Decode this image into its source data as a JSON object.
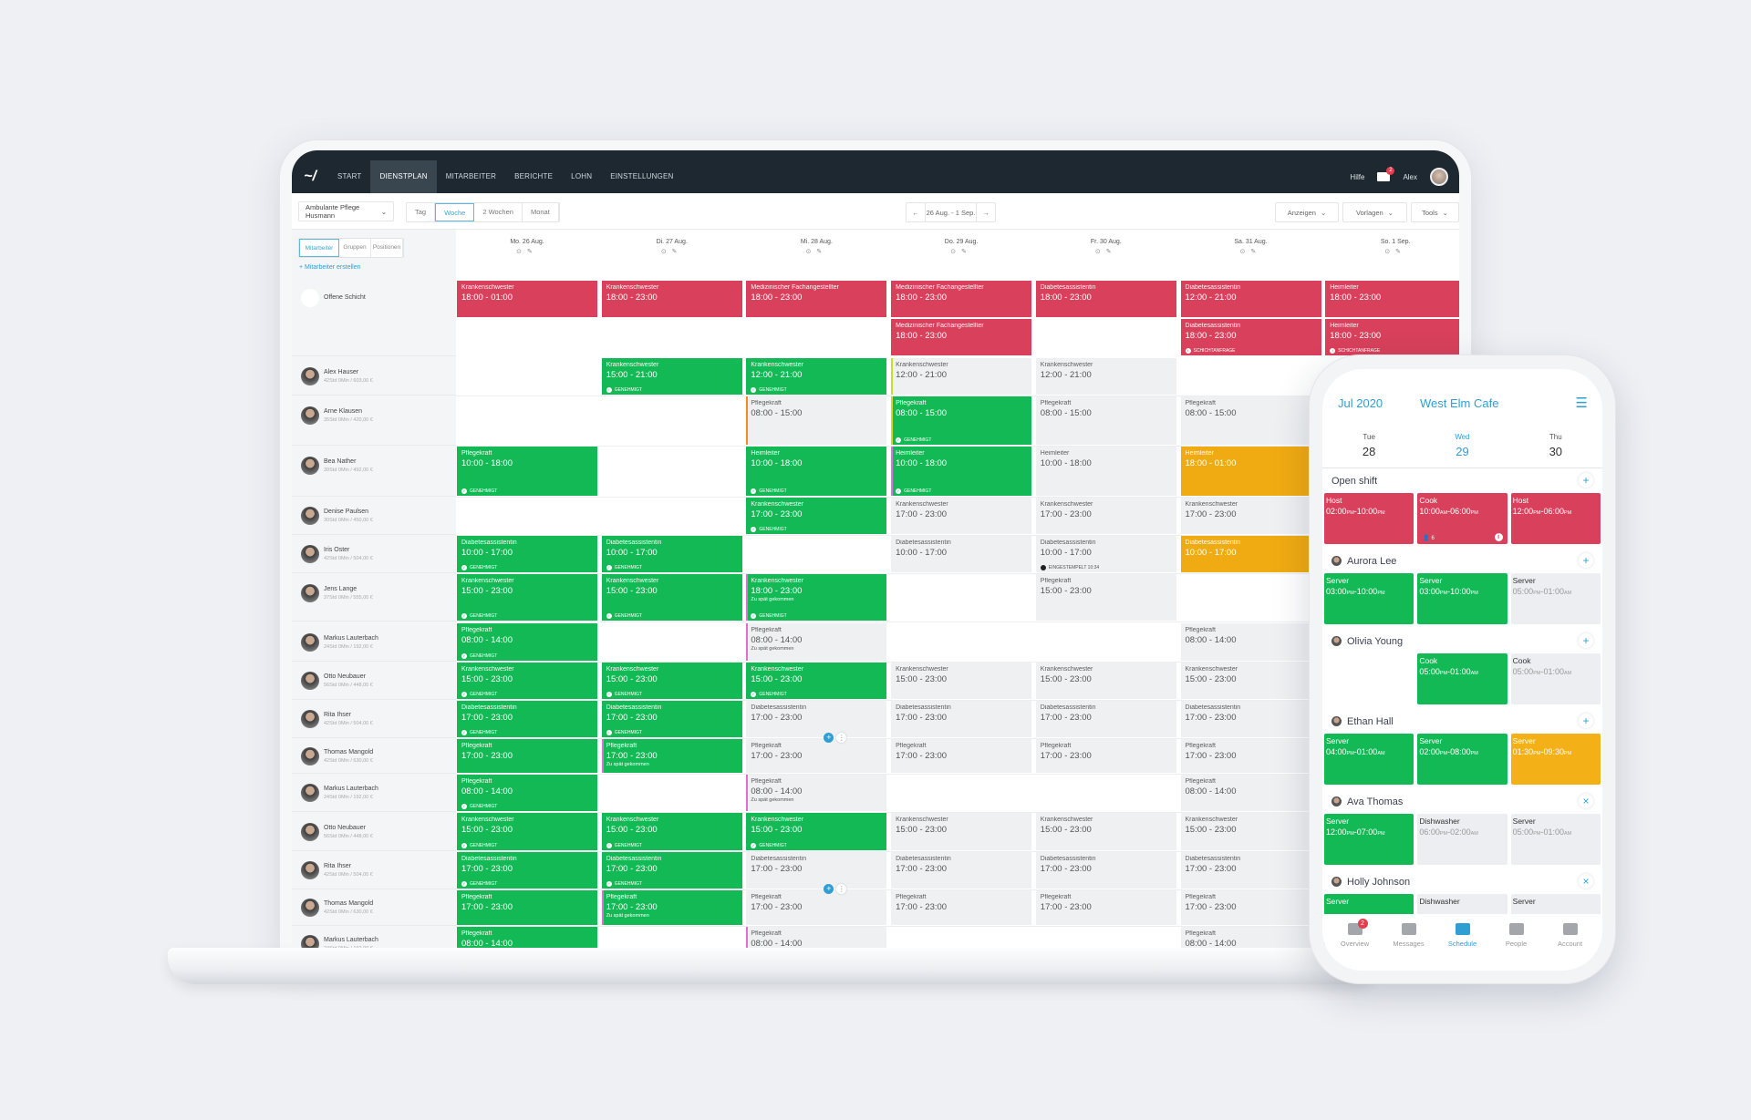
{
  "nav": {
    "items": [
      "START",
      "DIENSTPLAN",
      "MITARBEITER",
      "BERICHTE",
      "LOHN",
      "EINSTELLUNGEN"
    ],
    "active": 1,
    "help": "Hilfe",
    "mail_badge": "2",
    "user": "Alex"
  },
  "toolbar": {
    "location": "Ambulante Pflege Husmann",
    "views": [
      "Tag",
      "Woche",
      "2 Wochen",
      "Monat"
    ],
    "active_view": 1,
    "date_range": "26 Aug. - 1 Sep.",
    "menus": [
      "Anzeigen",
      "Vorlagen",
      "Tools"
    ]
  },
  "sidebar": {
    "tabs": [
      "Mitarbeiter",
      "Gruppen",
      "Positionen"
    ],
    "create": "+ Mitarbeiter erstellen",
    "open_label": "Offene Schicht"
  },
  "days": [
    "Mo. 26 Aug.",
    "Di. 27 Aug.",
    "Mi. 28 Aug.",
    "Do. 29 Aug.",
    "Fr. 30 Aug.",
    "Sa. 31 Aug.",
    "So. 1 Sep."
  ],
  "colors": {
    "green": "#13b955",
    "red": "#d8405b",
    "gray": "#eef0f2",
    "yellow": "#f0ab12",
    "accent": "#2f9fd3"
  },
  "open_shifts": [
    [
      {
        "role": "Krankenschwester",
        "time": "18:00 - 01:00",
        "status": "red"
      },
      {
        "role": "Krankenschwester",
        "time": "18:00 - 23:00",
        "status": "red"
      },
      {
        "role": "Medizinischer Fachangestellter",
        "time": "18:00 - 23:00",
        "status": "red"
      },
      {
        "role": "Medizinischer Fachangestellter",
        "time": "18:00 - 23:00",
        "status": "red"
      },
      {
        "role": "Diabetesassistentin",
        "time": "18:00 - 23:00",
        "status": "red"
      },
      {
        "role": "Diabetesassistentin",
        "time": "12:00 - 21:00",
        "status": "red"
      },
      {
        "role": "Heimleiter",
        "time": "18:00 - 23:00",
        "status": "red"
      }
    ],
    [
      null,
      null,
      null,
      {
        "role": "Medizinischer Fachangestellter",
        "time": "18:00 - 23:00",
        "status": "red"
      },
      null,
      {
        "role": "Diabetesassistentin",
        "time": "18:00 - 23:00",
        "status": "red",
        "badge": "SCHICHTANFRAGE",
        "badge_icon": "info"
      },
      {
        "role": "Heimleiter",
        "time": "18:00 - 23:00",
        "status": "red",
        "badge": "SCHICHTANFRAGE",
        "badge_icon": "info"
      }
    ]
  ],
  "employees": [
    {
      "name": "Alex Hauser",
      "stats": "42Std 0Min / 603,00 €",
      "cells": [
        null,
        {
          "role": "Krankenschwester",
          "time": "15:00 - 21:00",
          "status": "green",
          "badge": "GENEHMIGT"
        },
        {
          "role": "Krankenschwester",
          "time": "12:00 - 21:00",
          "status": "green",
          "badge": "GENEHMIGT"
        },
        {
          "role": "Krankenschwester",
          "time": "12:00 - 21:00",
          "status": "gray",
          "stripe": "#c9dc2b"
        },
        {
          "role": "Krankenschwester",
          "time": "12:00 - 21:00",
          "status": "gray"
        },
        null,
        null
      ]
    },
    {
      "name": "Arne Klausen",
      "stats": "35Std 0Min / 420,00 €",
      "cells": [
        null,
        null,
        {
          "role": "Pflegekraft",
          "time": "08:00 - 15:00",
          "status": "gray",
          "stripe": "#f08a24"
        },
        {
          "role": "Pflegekraft",
          "time": "08:00 - 15:00",
          "status": "green",
          "badge": "GENEHMIGT",
          "stripe": "#c9dc2b"
        },
        {
          "role": "Pflegekraft",
          "time": "08:00 - 15:00",
          "status": "gray"
        },
        {
          "role": "Pflegekraft",
          "time": "08:00 - 15:00",
          "status": "gray"
        },
        null
      ]
    },
    {
      "name": "Bea Nather",
      "stats": "39Std 0Min / 492,00 €",
      "cells": [
        {
          "role": "Pflegekraft",
          "time": "10:00 - 18:00",
          "status": "green",
          "badge": "GENEHMIGT"
        },
        null,
        {
          "role": "Heimleiter",
          "time": "10:00 - 18:00",
          "status": "green",
          "badge": "GENEHMIGT"
        },
        {
          "role": "Heimleiter",
          "time": "10:00 - 18:00",
          "status": "green",
          "badge": "GENEHMIGT",
          "stripe": "#d07ae0"
        },
        {
          "role": "Heimleiter",
          "time": "10:00 - 18:00",
          "status": "gray"
        },
        {
          "role": "Heimleiter",
          "time": "18:00 - 01:00",
          "status": "yellow"
        },
        null
      ]
    },
    {
      "name": "Denise Paulsen",
      "stats": "30Std 0Min / 450,00 €",
      "cells": [
        null,
        null,
        {
          "role": "Krankenschwester",
          "time": "17:00 - 23:00",
          "status": "green",
          "badge": "GENEHMIGT"
        },
        {
          "role": "Krankenschwester",
          "time": "17:00 - 23:00",
          "status": "gray"
        },
        {
          "role": "Krankenschwester",
          "time": "17:00 - 23:00",
          "status": "gray"
        },
        {
          "role": "Krankenschwester",
          "time": "17:00 - 23:00",
          "status": "gray"
        },
        null
      ]
    },
    {
      "name": "Iris Oster",
      "stats": "42Std 0Min / 504,00 €",
      "cells": [
        {
          "role": "Diabetesassistentin",
          "time": "10:00 - 17:00",
          "status": "green",
          "badge": "GENEHMIGT"
        },
        {
          "role": "Diabetesassistentin",
          "time": "10:00 - 17:00",
          "status": "green",
          "badge": "GENEHMIGT"
        },
        null,
        {
          "role": "Diabetesassistentin",
          "time": "10:00 - 17:00",
          "status": "gray"
        },
        {
          "role": "Diabetesassistentin",
          "time": "10:00 - 17:00",
          "status": "gray",
          "badge": "EINGESTEMPELT 10:34",
          "badge_icon": "clock"
        },
        {
          "role": "Diabetesassistentin",
          "time": "10:00 - 17:00",
          "status": "yellow"
        },
        null
      ]
    },
    {
      "name": "Jens Lange",
      "stats": "37Std 0Min / 555,00 €",
      "cells": [
        {
          "role": "Krankenschwester",
          "time": "15:00 - 23:00",
          "status": "green",
          "badge": "GENEHMIGT"
        },
        {
          "role": "Krankenschwester",
          "time": "15:00 - 23:00",
          "status": "green",
          "badge": "GENEHMIGT"
        },
        {
          "role": "Krankenschwester",
          "time": "18:00 - 23:00",
          "status": "green",
          "badge": "GENEHMIGT",
          "note": "Zu spät gekommen",
          "stripe": "#e070d0"
        },
        null,
        {
          "role": "Pflegekraft",
          "time": "15:00 - 23:00",
          "status": "gray"
        },
        null,
        null
      ]
    },
    {
      "name": "Markus Lauterbach",
      "stats": "24Std 0Min / 192,00 €",
      "cells": [
        {
          "role": "Pflegekraft",
          "time": "08:00 - 14:00",
          "status": "green",
          "badge": "GENEHMIGT"
        },
        null,
        {
          "role": "Pflegekraft",
          "time": "08:00 - 14:00",
          "status": "gray",
          "note": "Zu spät gekommen",
          "stripe": "#e070d0"
        },
        null,
        null,
        {
          "role": "Pflegekraft",
          "time": "08:00 - 14:00",
          "status": "gray"
        },
        null
      ]
    },
    {
      "name": "Otto Neubauer",
      "stats": "56Std 0Min / 448,00 €",
      "cells": [
        {
          "role": "Krankenschwester",
          "time": "15:00 - 23:00",
          "status": "green",
          "badge": "GENEHMIGT"
        },
        {
          "role": "Krankenschwester",
          "time": "15:00 - 23:00",
          "status": "green",
          "badge": "GENEHMIGT"
        },
        {
          "role": "Krankenschwester",
          "time": "15:00 - 23:00",
          "status": "green",
          "badge": "GENEHMIGT"
        },
        {
          "role": "Krankenschwester",
          "time": "15:00 - 23:00",
          "status": "gray"
        },
        {
          "role": "Krankenschwester",
          "time": "15:00 - 23:00",
          "status": "gray"
        },
        {
          "role": "Krankenschwester",
          "time": "15:00 - 23:00",
          "status": "gray"
        },
        null
      ]
    },
    {
      "name": "Rita Ihser",
      "stats": "42Std 0Min / 504,00 €",
      "cells": [
        {
          "role": "Diabetesassistentin",
          "time": "17:00 - 23:00",
          "status": "green",
          "badge": "GENEHMIGT"
        },
        {
          "role": "Diabetesassistentin",
          "time": "17:00 - 23:00",
          "status": "green",
          "badge": "GENEHMIGT"
        },
        {
          "role": "Diabetesassistentin",
          "time": "17:00 - 23:00",
          "status": "gray",
          "add": true
        },
        {
          "role": "Diabetesassistentin",
          "time": "17:00 - 23:00",
          "status": "gray"
        },
        {
          "role": "Diabetesassistentin",
          "time": "17:00 - 23:00",
          "status": "gray"
        },
        {
          "role": "Diabetesassistentin",
          "time": "17:00 - 23:00",
          "status": "gray"
        },
        null
      ]
    },
    {
      "name": "Thomas Mangold",
      "stats": "42Std 0Min / 630,00 €",
      "cells": [
        {
          "role": "Pflegekraft",
          "time": "17:00 - 23:00",
          "status": "green"
        },
        {
          "role": "Pflegekraft",
          "time": "17:00 - 23:00",
          "status": "green",
          "note": "Zu spät gekommen",
          "stripe": "#e070d0"
        },
        {
          "role": "Pflegekraft",
          "time": "17:00 - 23:00",
          "status": "gray"
        },
        {
          "role": "Pflegekraft",
          "time": "17:00 - 23:00",
          "status": "gray"
        },
        {
          "role": "Pflegekraft",
          "time": "17:00 - 23:00",
          "status": "gray"
        },
        {
          "role": "Pflegekraft",
          "time": "17:00 - 23:00",
          "status": "gray"
        },
        null
      ]
    },
    {
      "name": "Markus Lauterbach",
      "stats": "24Std 0Min / 192,00 €",
      "cells": [
        {
          "role": "Pflegekraft",
          "time": "08:00 - 14:00",
          "status": "green",
          "badge": "GENEHMIGT"
        },
        null,
        {
          "role": "Pflegekraft",
          "time": "08:00 - 14:00",
          "status": "gray",
          "note": "Zu spät gekommen",
          "stripe": "#e070d0"
        },
        null,
        null,
        {
          "role": "Pflegekraft",
          "time": "08:00 - 14:00",
          "status": "gray"
        },
        null
      ]
    },
    {
      "name": "Otto Neubauer",
      "stats": "56Std 0Min / 448,00 €",
      "cells": [
        {
          "role": "Krankenschwester",
          "time": "15:00 - 23:00",
          "status": "green",
          "badge": "GENEHMIGT"
        },
        {
          "role": "Krankenschwester",
          "time": "15:00 - 23:00",
          "status": "green",
          "badge": "GENEHMIGT"
        },
        {
          "role": "Krankenschwester",
          "time": "15:00 - 23:00",
          "status": "green",
          "badge": "GENEHMIGT"
        },
        {
          "role": "Krankenschwester",
          "time": "15:00 - 23:00",
          "status": "gray"
        },
        {
          "role": "Krankenschwester",
          "time": "15:00 - 23:00",
          "status": "gray"
        },
        {
          "role": "Krankenschwester",
          "time": "15:00 - 23:00",
          "status": "gray"
        },
        null
      ]
    },
    {
      "name": "Rita Ihser",
      "stats": "42Std 0Min / 504,00 €",
      "cells": [
        {
          "role": "Diabetesassistentin",
          "time": "17:00 - 23:00",
          "status": "green",
          "badge": "GENEHMIGT"
        },
        {
          "role": "Diabetesassistentin",
          "time": "17:00 - 23:00",
          "status": "green",
          "badge": "GENEHMIGT"
        },
        {
          "role": "Diabetesassistentin",
          "time": "17:00 - 23:00",
          "status": "gray",
          "add": true
        },
        {
          "role": "Diabetesassistentin",
          "time": "17:00 - 23:00",
          "status": "gray"
        },
        {
          "role": "Diabetesassistentin",
          "time": "17:00 - 23:00",
          "status": "gray"
        },
        {
          "role": "Diabetesassistentin",
          "time": "17:00 - 23:00",
          "status": "gray"
        },
        null
      ]
    },
    {
      "name": "Thomas Mangold",
      "stats": "42Std 0Min / 630,00 €",
      "cells": [
        {
          "role": "Pflegekraft",
          "time": "17:00 - 23:00",
          "status": "green"
        },
        {
          "role": "Pflegekraft",
          "time": "17:00 - 23:00",
          "status": "green",
          "note": "Zu spät gekommen",
          "stripe": "#e070d0"
        },
        {
          "role": "Pflegekraft",
          "time": "17:00 - 23:00",
          "status": "gray"
        },
        {
          "role": "Pflegekraft",
          "time": "17:00 - 23:00",
          "status": "gray"
        },
        {
          "role": "Pflegekraft",
          "time": "17:00 - 23:00",
          "status": "gray"
        },
        {
          "role": "Pflegekraft",
          "time": "17:00 - 23:00",
          "status": "gray"
        },
        null
      ]
    },
    {
      "name": "Markus Lauterbach",
      "stats": "24Std 0Min / 192,00 €",
      "cells": [
        {
          "role": "Pflegekraft",
          "time": "08:00 - 14:00",
          "status": "green"
        },
        null,
        {
          "role": "Pflegekraft",
          "time": "08:00 - 14:00",
          "status": "gray",
          "stripe": "#e070d0"
        },
        null,
        null,
        {
          "role": "Pflegekraft",
          "time": "08:00 - 14:00",
          "status": "gray"
        },
        null
      ]
    }
  ],
  "phone": {
    "month": "Jul 2020",
    "location": "West Elm Cafe",
    "days": [
      {
        "dow": "Tue",
        "num": "28"
      },
      {
        "dow": "Wed",
        "num": "29",
        "active": true
      },
      {
        "dow": "Thu",
        "num": "30"
      }
    ],
    "sections": [
      {
        "name": "Open shift",
        "action": "+",
        "cells": [
          {
            "role": "Host",
            "start": "02:00",
            "sa": "PM",
            "end": "10:00",
            "ea": "PM",
            "status": "red"
          },
          {
            "role": "Cook",
            "start": "10:00",
            "sa": "AM",
            "end": "06:00",
            "ea": "PM",
            "status": "red",
            "count": "6",
            "info": "i"
          },
          {
            "role": "Host",
            "start": "12:00",
            "sa": "PM",
            "end": "06:00",
            "ea": "PM",
            "status": "red"
          }
        ]
      },
      {
        "name": "Aurora Lee",
        "avatar": true,
        "action": "+",
        "cells": [
          {
            "role": "Server",
            "start": "03:00",
            "sa": "PM",
            "end": "10:00",
            "ea": "PM",
            "status": "green"
          },
          {
            "role": "Server",
            "start": "03:00",
            "sa": "PM",
            "end": "10:00",
            "ea": "PM",
            "status": "green"
          },
          {
            "role": "Server",
            "start": "05:00",
            "sa": "PM",
            "end": "01:00",
            "ea": "AM",
            "status": "gray"
          }
        ]
      },
      {
        "name": "Olivia Young",
        "avatar": true,
        "action": "+",
        "cells": [
          null,
          {
            "role": "Cook",
            "start": "05:00",
            "sa": "PM",
            "end": "01:00",
            "ea": "AM",
            "status": "green"
          },
          {
            "role": "Cook",
            "start": "05:00",
            "sa": "PM",
            "end": "01:00",
            "ea": "AM",
            "status": "gray"
          }
        ]
      },
      {
        "name": "Ethan Hall",
        "avatar": true,
        "action": "+",
        "cells": [
          {
            "role": "Server",
            "start": "04:00",
            "sa": "PM",
            "end": "01:00",
            "ea": "AM",
            "status": "green"
          },
          {
            "role": "Server",
            "start": "02:00",
            "sa": "PM",
            "end": "08:00",
            "ea": "PM",
            "status": "green"
          },
          {
            "role": "Server",
            "start": "01:30",
            "sa": "PM",
            "end": "09:30",
            "ea": "PM",
            "status": "yellow"
          }
        ]
      },
      {
        "name": "Ava Thomas",
        "avatar": true,
        "action": "×",
        "cells": [
          {
            "role": "Server",
            "start": "12:00",
            "sa": "PM",
            "end": "07:00",
            "ea": "PM",
            "status": "green"
          },
          {
            "role": "Dishwasher",
            "start": "06:00",
            "sa": "PM",
            "end": "02:00",
            "ea": "AM",
            "status": "gray"
          },
          {
            "role": "Server",
            "start": "05:00",
            "sa": "PM",
            "end": "01:00",
            "ea": "AM",
            "status": "gray"
          }
        ]
      },
      {
        "name": "Holly Johnson",
        "avatar": true,
        "action": "×",
        "cells": [
          {
            "role": "Server",
            "status": "green"
          },
          {
            "role": "Dishwasher",
            "status": "gray"
          },
          {
            "role": "Server",
            "status": "gray"
          }
        ]
      }
    ],
    "tabs": [
      {
        "label": "Overview",
        "badge": "2"
      },
      {
        "label": "Messages"
      },
      {
        "label": "Schedule",
        "active": true
      },
      {
        "label": "People"
      },
      {
        "label": "Account"
      }
    ]
  }
}
